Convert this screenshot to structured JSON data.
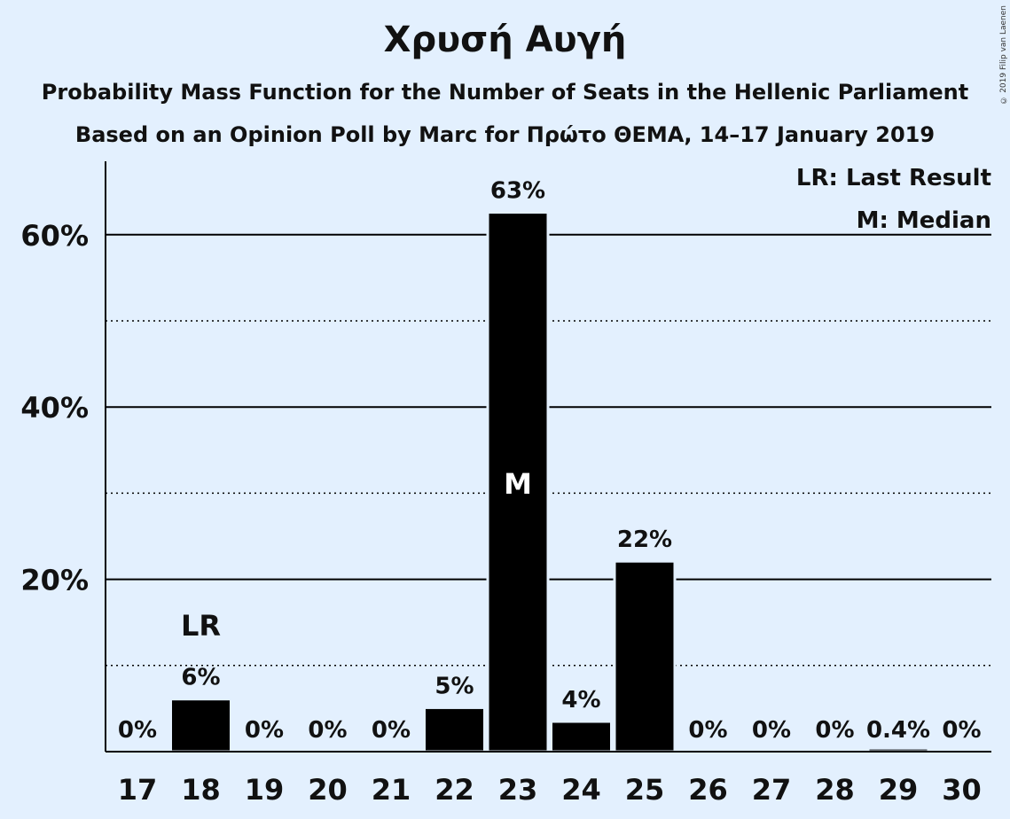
{
  "title": "Χρυσή Αυγή",
  "subtitle_1": "Probability Mass Function for the Number of Seats in the Hellenic Parliament",
  "subtitle_2": "Based on an Opinion Poll by Marc for Πρώτο ΘΕΜΑ, 14–17 January 2019",
  "copyright": "© 2019 Filip van Laenen",
  "legend": {
    "last_result": "LR: Last Result",
    "median": "M: Median"
  },
  "colors": {
    "background": "#e3f0fe",
    "bar": "#000000",
    "text": "#111111",
    "median_text": "#ffffff"
  },
  "chart_data": {
    "type": "bar",
    "title": "Χρυσή Αυγή",
    "xlabel": "",
    "ylabel": "",
    "categories": [
      "17",
      "18",
      "19",
      "20",
      "21",
      "22",
      "23",
      "24",
      "25",
      "26",
      "27",
      "28",
      "29",
      "30"
    ],
    "values": [
      0,
      6,
      0,
      0,
      0,
      5,
      63,
      4,
      22,
      0,
      0,
      0,
      0.4,
      0
    ],
    "bar_heights_pct": [
      0,
      6.1,
      0,
      0,
      0,
      5.1,
      62.6,
      3.5,
      22.1,
      0,
      0,
      0,
      0.4,
      0
    ],
    "labels": [
      "0%",
      "6%",
      "0%",
      "0%",
      "0%",
      "5%",
      "63%",
      "4%",
      "22%",
      "0%",
      "0%",
      "0%",
      "0.4%",
      "0%"
    ],
    "ylim": [
      0,
      68
    ],
    "y_ticks": [
      20,
      40,
      60
    ],
    "y_tick_labels": [
      "20%",
      "40%",
      "60%"
    ],
    "y_minor_ticks": [
      10,
      30,
      50
    ],
    "grid": true,
    "last_result": {
      "category": "18",
      "label": "LR"
    },
    "median": {
      "category": "23",
      "label": "M"
    },
    "legend_position": "top-right"
  }
}
